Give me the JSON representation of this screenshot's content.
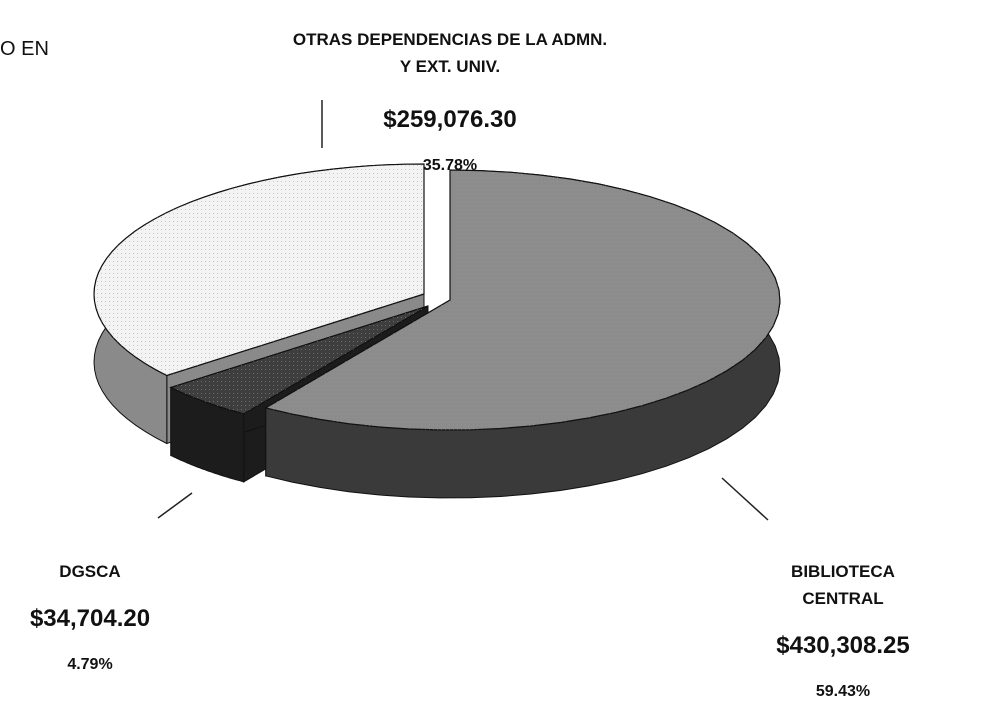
{
  "chart_data": {
    "type": "pie3d",
    "title": "O EN",
    "categories": [
      "BIBLIOTECA CENTRAL",
      "DGSCA",
      "OTRAS DEPENDENCIAS DE LA ADMN.\nY EXT. UNIV."
    ],
    "values": [
      430308.25,
      34704.2,
      259076.3
    ],
    "value_labels": [
      "$430,308.25",
      "$34,704.20",
      "$259,076.30"
    ],
    "percents": [
      59.43,
      4.79,
      35.78
    ],
    "percent_labels": [
      "59.43%",
      "4.79%",
      "35.78%"
    ],
    "colors": [
      "#8c8c8c",
      "#3e3e3e",
      "#f3f3f3"
    ],
    "side_colors": [
      "#3a3a3a",
      "#1c1c1c",
      "#8a8a8a"
    ]
  }
}
